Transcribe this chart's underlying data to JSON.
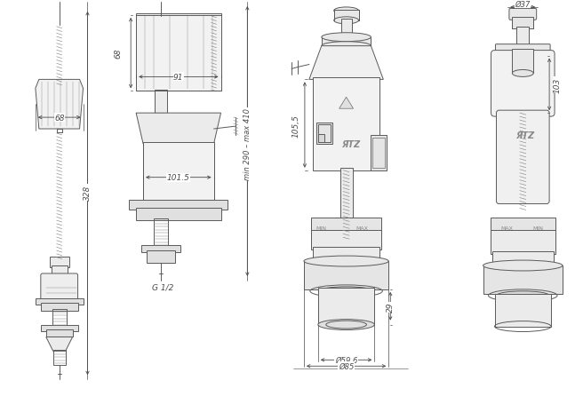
{
  "bg_color": "#ffffff",
  "lc": "#5a5a5a",
  "dc": "#4a4a4a",
  "lc2": "#888888",
  "lc3": "#aaaaaa",
  "fig_w": 6.56,
  "fig_h": 4.56,
  "labels": {
    "d1": "68",
    "d2": "68",
    "d3": "328",
    "d4": "91",
    "d5": "101.5",
    "d6": "G 1/2",
    "d7": "min 290 – max 410",
    "d8": "29",
    "d9": "105,5",
    "d10": "Ø59,6",
    "d11": "Ø85",
    "d12": "Ø37",
    "d13": "103"
  }
}
